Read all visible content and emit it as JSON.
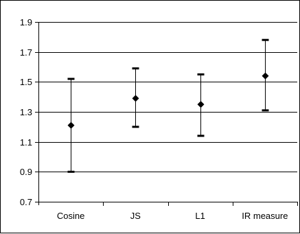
{
  "chart_data": {
    "type": "scatter",
    "title": "",
    "xlabel": "",
    "ylabel": "",
    "categories": [
      "Cosine",
      "JS",
      "L1",
      "IR measure"
    ],
    "series": [
      {
        "mean": [
          1.21,
          1.39,
          1.35,
          1.54
        ],
        "upper": [
          1.52,
          1.59,
          1.55,
          1.78
        ],
        "lower": [
          0.9,
          1.2,
          1.14,
          1.31
        ]
      }
    ],
    "ylim": [
      0.7,
      1.9
    ],
    "yticks": [
      "0.7",
      "0.9",
      "1.1",
      "1.3",
      "1.5",
      "1.7",
      "1.9"
    ],
    "grid": "horizontal",
    "legend": "none",
    "marker": "diamond",
    "error_bars": true,
    "colors": {
      "marker": "#000000",
      "gridline": "#000000",
      "background": "#ffffff"
    }
  }
}
